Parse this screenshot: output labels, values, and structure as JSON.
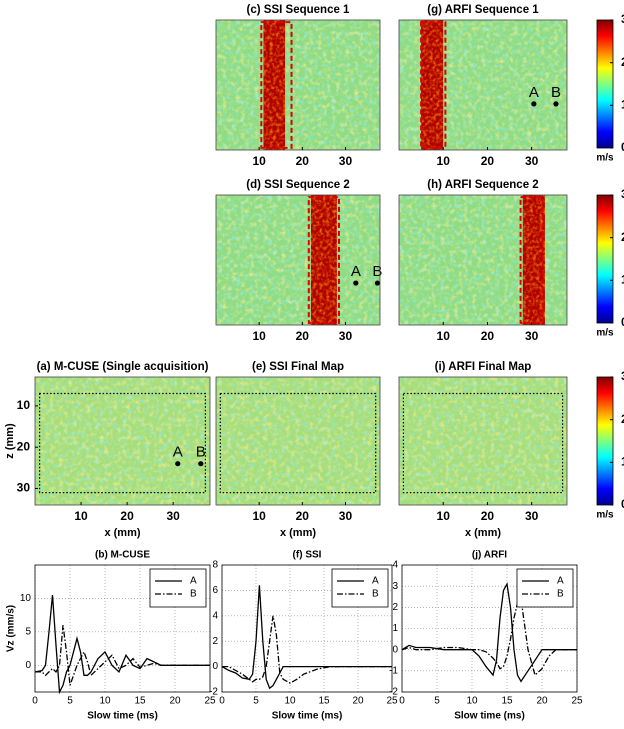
{
  "chart_data": [
    {
      "type": "image",
      "title": "(c) SSI Sequence 1",
      "xlim": [
        0,
        38
      ],
      "ylim": [
        3,
        34
      ],
      "yreverse": true,
      "xticks": [
        10,
        20,
        30
      ],
      "fill_color": "#8fdc84",
      "inclusion": [
        11,
        16
      ],
      "inclusion_color": "#b00000",
      "box": [
        10.5,
        17.5,
        3.5,
        33.5
      ],
      "box_color": "#e00000"
    },
    {
      "type": "image",
      "title": "(g) ARFI Sequence 1",
      "xlim": [
        0,
        38
      ],
      "ylim": [
        3,
        34
      ],
      "yreverse": true,
      "xticks": [
        10,
        20,
        30
      ],
      "fill_color": "#8fdc84",
      "inclusion": [
        5,
        10
      ],
      "inclusion_color": "#b00000",
      "box": [
        5,
        10.5,
        3.5,
        33.5
      ],
      "box_color": "#e00000",
      "points": [
        {
          "label": "A",
          "x": 30.5,
          "y": 23
        },
        {
          "label": "B",
          "x": 35.5,
          "y": 23
        }
      ]
    },
    {
      "type": "colorbar",
      "ylim": [
        0,
        3
      ],
      "yticks": [
        0,
        1,
        2,
        3
      ],
      "label": "m/s"
    },
    {
      "type": "image",
      "title": "(d) SSI Sequence 2",
      "xlim": [
        0,
        38
      ],
      "ylim": [
        3,
        34
      ],
      "yreverse": true,
      "xticks": [
        10,
        20,
        30
      ],
      "fill_color": "#8fdc84",
      "inclusion": [
        22,
        28
      ],
      "inclusion_color": "#b00000",
      "box": [
        21.5,
        28.5,
        3.5,
        33.5
      ],
      "box_color": "#e00000",
      "points": [
        {
          "label": "A",
          "x": 32.4,
          "y": 24
        },
        {
          "label": "B",
          "x": 37.4,
          "y": 24
        }
      ]
    },
    {
      "type": "image",
      "title": "(h) ARFI Sequence 2",
      "xlim": [
        0,
        38
      ],
      "ylim": [
        3,
        34
      ],
      "yreverse": true,
      "xticks": [
        10,
        20,
        30
      ],
      "fill_color": "#8fdc84",
      "inclusion": [
        28,
        33
      ],
      "inclusion_color": "#b00000",
      "box": [
        27.5,
        32.5,
        3.5,
        33.5
      ],
      "box_color": "#e00000"
    },
    {
      "type": "colorbar",
      "ylim": [
        0,
        3
      ],
      "yticks": [
        0,
        1,
        2,
        3
      ],
      "label": "m/s"
    },
    {
      "type": "image",
      "title": "(a) M-CUSE (Single acquisition)",
      "xlabel": "x (mm)",
      "ylabel": "z (mm)",
      "xlim": [
        0,
        38
      ],
      "ylim": [
        3,
        34
      ],
      "yreverse": true,
      "xticks": [
        10,
        20,
        30
      ],
      "yticks": [
        10,
        20,
        30
      ],
      "fill_color": "#a6de7c",
      "box": [
        1,
        37,
        7,
        31
      ],
      "box_color": "#000000",
      "points": [
        {
          "label": "A",
          "x": 31,
          "y": 24
        },
        {
          "label": "B",
          "x": 36,
          "y": 24
        }
      ]
    },
    {
      "type": "image",
      "title": "(e) SSI Final Map",
      "xlabel": "x (mm)",
      "xlim": [
        0,
        38
      ],
      "ylim": [
        3,
        34
      ],
      "yreverse": true,
      "xticks": [
        10,
        20,
        30
      ],
      "fill_color": "#a6de7c",
      "box": [
        1,
        37,
        7,
        31
      ],
      "box_color": "#000000"
    },
    {
      "type": "image",
      "title": "(i) ARFI Final Map",
      "xlabel": "x (mm)",
      "xlim": [
        0,
        38
      ],
      "ylim": [
        3,
        34
      ],
      "yreverse": true,
      "xticks": [
        10,
        20,
        30
      ],
      "fill_color": "#a6de7c",
      "box": [
        1,
        37,
        7,
        31
      ],
      "box_color": "#000000"
    },
    {
      "type": "colorbar",
      "ylim": [
        0,
        3
      ],
      "yticks": [
        0,
        1,
        2,
        3
      ],
      "label": "m/s"
    },
    {
      "type": "line",
      "title": "(b) M-CUSE",
      "xlabel": "Slow time (ms)",
      "ylabel": "Vz (mm/s)",
      "xlim": [
        0,
        25
      ],
      "ylim": [
        -4,
        15
      ],
      "xticks": [
        0,
        5,
        10,
        15,
        20,
        25
      ],
      "yticks": [
        0,
        5,
        10
      ],
      "grid": true,
      "legend": "upper right",
      "x": [
        0,
        1,
        1.5,
        2,
        2.5,
        3,
        3.5,
        4,
        4.5,
        5,
        5.5,
        6,
        6.5,
        7,
        7.5,
        8,
        9,
        10,
        11,
        12,
        13,
        14,
        15,
        16,
        17,
        18,
        20,
        22,
        25
      ],
      "series": [
        {
          "name": "A",
          "color": "#000000",
          "dash": "solid",
          "values": [
            -1,
            -0.8,
            0,
            5,
            10.5,
            3,
            -4,
            -3,
            -1,
            0,
            2,
            4,
            2,
            -1.5,
            -1.5,
            -1,
            1,
            2,
            0,
            -1,
            1.5,
            0,
            -0.5,
            1,
            0.5,
            0,
            0,
            0,
            0
          ]
        },
        {
          "name": "B",
          "color": "#000000",
          "dash": "dashdot",
          "values": [
            -1,
            -1,
            -1.5,
            -1,
            -0.5,
            -1,
            0,
            6,
            2,
            -3,
            -1.5,
            0,
            1,
            2,
            0.5,
            -1.5,
            -0.5,
            0.5,
            1.5,
            -0.5,
            0,
            1,
            -0.3,
            0,
            0.3,
            0,
            0,
            0,
            0
          ]
        }
      ]
    },
    {
      "type": "line",
      "title": "(f) SSI",
      "xlabel": "Slow time (ms)",
      "xlim": [
        0,
        25
      ],
      "ylim": [
        -2,
        8
      ],
      "xticks": [
        0,
        5,
        10,
        15,
        20,
        25
      ],
      "yticks": [
        -2,
        0,
        2,
        4,
        6,
        8
      ],
      "grid": true,
      "legend": "upper right",
      "x": [
        0,
        1,
        2,
        3,
        4,
        4.5,
        5,
        5.5,
        6,
        6.5,
        7,
        7.5,
        8,
        8.5,
        9,
        10,
        11,
        12,
        14,
        16,
        18,
        20,
        22,
        25
      ],
      "series": [
        {
          "name": "A",
          "color": "#000000",
          "dash": "solid",
          "values": [
            0,
            -0.3,
            -0.5,
            -0.9,
            -1,
            -0.6,
            2,
            6.4,
            2,
            -1,
            -1.7,
            -1.5,
            -1,
            -0.5,
            0,
            0,
            0,
            0,
            0,
            0,
            0,
            0,
            0,
            0
          ]
        },
        {
          "name": "B",
          "color": "#000000",
          "dash": "dashdot",
          "values": [
            0,
            0,
            -0.3,
            -0.6,
            -1,
            -1.2,
            -1,
            -1,
            -0.8,
            0,
            2,
            4,
            2.5,
            -0.5,
            -1,
            -1.3,
            -1,
            -0.6,
            -0.2,
            0,
            0,
            0,
            0,
            0
          ]
        }
      ]
    },
    {
      "type": "line",
      "title": "(j) ARFI",
      "xlabel": "Slow time (ms)",
      "xlim": [
        0,
        25
      ],
      "ylim": [
        -2,
        4
      ],
      "xticks": [
        0,
        5,
        10,
        15,
        20,
        25
      ],
      "yticks": [
        -2,
        -1,
        0,
        1,
        2,
        3,
        4
      ],
      "grid": true,
      "legend": "upper right",
      "x": [
        0,
        1,
        2,
        4,
        6,
        8,
        10,
        11,
        12,
        13,
        13.5,
        14,
        14.5,
        15,
        15.5,
        16,
        16.5,
        17,
        18,
        19,
        20,
        21,
        22,
        25
      ],
      "series": [
        {
          "name": "A",
          "color": "#000000",
          "dash": "solid",
          "values": [
            0,
            0.2,
            0.1,
            0.1,
            0,
            0,
            0,
            -0.3,
            -0.8,
            -1.2,
            -0.5,
            1.5,
            2.8,
            3.1,
            2,
            0,
            -1.2,
            -1.5,
            -1,
            -0.5,
            0,
            0,
            0,
            0
          ]
        },
        {
          "name": "B",
          "color": "#000000",
          "dash": "dashdot",
          "values": [
            0,
            0.1,
            0,
            0,
            0.1,
            0.1,
            0,
            0,
            -0.1,
            -0.4,
            -0.6,
            -0.9,
            -0.8,
            -0.3,
            0.5,
            1.5,
            2.2,
            2.4,
            0,
            -1.2,
            -0.9,
            -0.3,
            0,
            0
          ]
        }
      ]
    }
  ]
}
